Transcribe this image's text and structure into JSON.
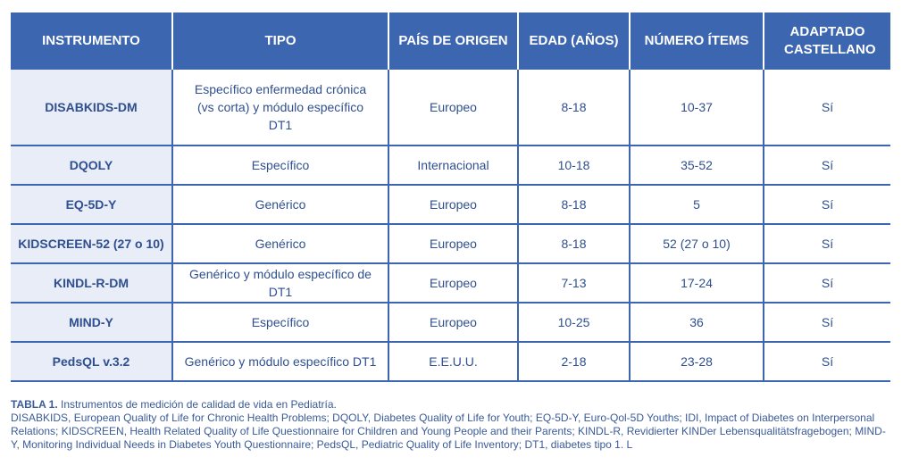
{
  "table": {
    "headers": [
      "INSTRUMENTO",
      "TIPO",
      "PAÍS DE ORIGEN",
      "EDAD (AÑOS)",
      "NÚMERO ÍTEMS",
      "ADAPTADO CASTELLANO"
    ],
    "rows": [
      [
        "DISABKIDS-DM",
        "Específico enfermedad crónica (vs corta) y módulo específico DT1",
        "Europeo",
        "8-18",
        "10-37",
        "Sí"
      ],
      [
        "DQOLY",
        "Específico",
        "Internacional",
        "10-18",
        "35-52",
        "Sí"
      ],
      [
        "EQ-5D-Y",
        "Genérico",
        "Europeo",
        "8-18",
        "5",
        "Sí"
      ],
      [
        "KIDSCREEN-52 (27 o 10)",
        "Genérico",
        "Europeo",
        "8-18",
        "52 (27 o 10)",
        "Sí"
      ],
      [
        "KINDL-R-DM",
        "Genérico y módulo específico de DT1",
        "Europeo",
        "7-13",
        "17-24",
        "Sí"
      ],
      [
        "MIND-Y",
        "Específico",
        "Europeo",
        "10-25",
        "36",
        "Sí"
      ],
      [
        "PedsQL v.3.2",
        "Genérico y módulo específico DT1",
        "E.E.U.U.",
        "2-18",
        "23-28",
        "Sí"
      ]
    ]
  },
  "caption": {
    "label": "TABLA 1.",
    "title": " Instrumentos de medición de calidad de vida en Pediatría.",
    "notes": "DISABKIDS, European Quality of Life for  Chronic Health Problems; DQOLY, Diabetes Quality of Life for Youth; EQ-5D-Y, Euro-Qol-5D Youths; IDI, Impact of Diabetes on Interpersonal Relations; KIDSCREEN, Health Related Quality of Life Questionnaire for Children and Young People and their Parents; KINDL-R, Revidierter KINDer Lebensqualitätsfragebogen; MIND-Y, Monitoring Individual Needs in Diabetes Youth Questionnaire; PedsQL, Pediatric Quality of Life Inventory; DT1, diabetes tipo 1. L"
  },
  "colors": {
    "header_bg": "#3d66b0",
    "first_col_bg": "#e8edf7",
    "text": "#2f4f8f"
  }
}
